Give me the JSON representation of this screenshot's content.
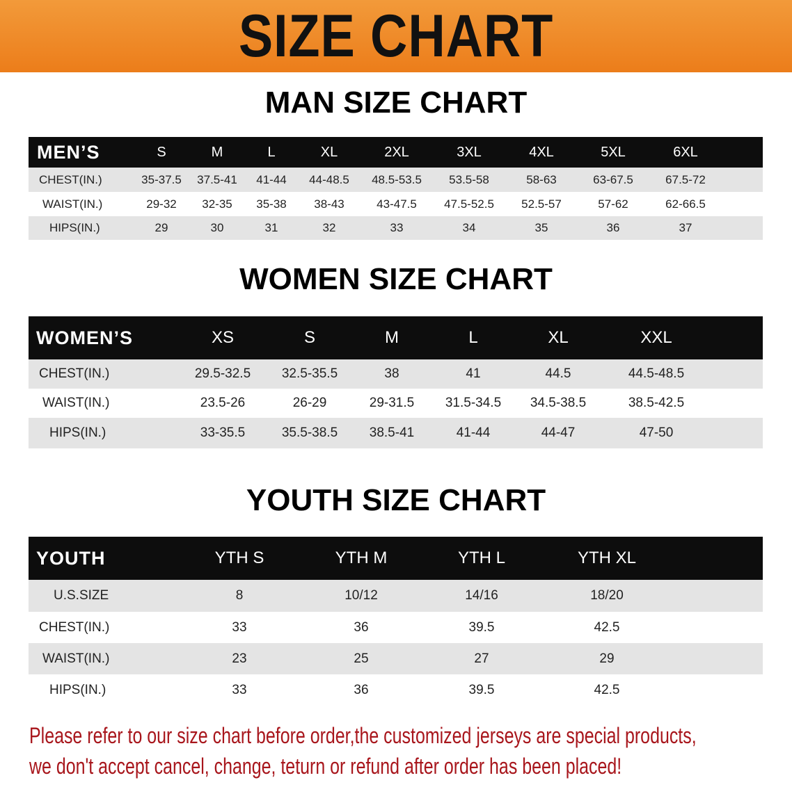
{
  "banner": {
    "title": "SIZE CHART",
    "color": "#ee8520"
  },
  "men": {
    "heading": "MAN SIZE CHART",
    "header": [
      "MEN’S",
      "S",
      "M",
      "L",
      "XL",
      "2XL",
      "3XL",
      "4XL",
      "5XL",
      "6XL"
    ],
    "rows": [
      [
        "CHEST(IN.)",
        "35-37.5",
        "37.5-41",
        "41-44",
        "44-48.5",
        "48.5-53.5",
        "53.5-58",
        "58-63",
        "63-67.5",
        "67.5-72"
      ],
      [
        "WAIST(IN.)",
        "29-32",
        "32-35",
        "35-38",
        "38-43",
        "43-47.5",
        "47.5-52.5",
        "52.5-57",
        "57-62",
        "62-66.5"
      ],
      [
        "HIPS(IN.)",
        "29",
        "30",
        "31",
        "32",
        "33",
        "34",
        "35",
        "36",
        "37"
      ]
    ]
  },
  "women": {
    "heading": "WOMEN SIZE CHART",
    "header": [
      "WOMEN’S",
      "XS",
      "S",
      "M",
      "L",
      "XL",
      "XXL"
    ],
    "rows": [
      [
        "CHEST(IN.)",
        "29.5-32.5",
        "32.5-35.5",
        "38",
        "41",
        "44.5",
        "44.5-48.5"
      ],
      [
        "WAIST(IN.)",
        "23.5-26",
        "26-29",
        "29-31.5",
        "31.5-34.5",
        "34.5-38.5",
        "38.5-42.5"
      ],
      [
        "HIPS(IN.)",
        "33-35.5",
        "35.5-38.5",
        "38.5-41",
        "41-44",
        "44-47",
        "47-50"
      ]
    ]
  },
  "youth": {
    "heading": "YOUTH SIZE CHART",
    "header": [
      "YOUTH",
      "YTH S",
      "YTH M",
      "YTH L",
      "YTH XL"
    ],
    "rows": [
      [
        "U.S.SIZE",
        "8",
        "10/12",
        "14/16",
        "18/20"
      ],
      [
        "CHEST(IN.)",
        "33",
        "36",
        "39.5",
        "42.5"
      ],
      [
        "WAIST(IN.)",
        "23",
        "25",
        "27",
        "29"
      ],
      [
        "HIPS(IN.)",
        "33",
        "36",
        "39.5",
        "42.5"
      ]
    ]
  },
  "note": {
    "line1": "Please refer to our size chart before order,the customized jerseys are special products,",
    "line2": "we don't accept cancel, change, teturn or refund after order has been placed!",
    "color": "#a8161c"
  }
}
